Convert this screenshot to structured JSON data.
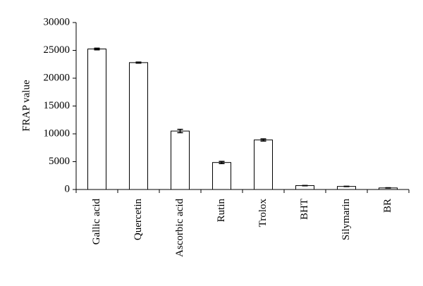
{
  "chart_data": {
    "type": "bar",
    "y_label": "FRAP value",
    "categories": [
      "Gallic acid",
      "Quercetin",
      "Ascorbic acid",
      "Rutin",
      "Trolox",
      "BHT",
      "Silymarin",
      "BR"
    ],
    "values": [
      25250,
      22800,
      10500,
      4850,
      8900,
      700,
      550,
      280
    ],
    "errors": [
      150,
      100,
      300,
      200,
      200,
      30,
      30,
      30
    ],
    "color": "#ffffff",
    "ylim": [
      0,
      30000
    ],
    "yticks": [
      0,
      5000,
      10000,
      15000,
      20000,
      25000,
      30000
    ],
    "grid": false
  }
}
